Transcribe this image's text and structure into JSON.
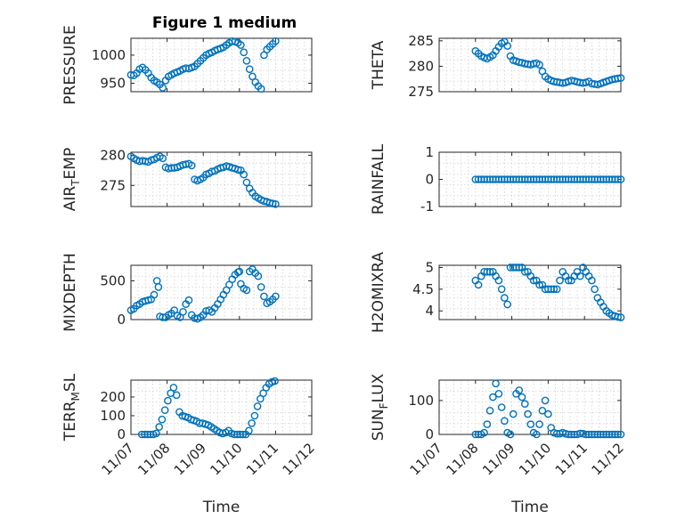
{
  "figure_title": "Figure 1 medium",
  "colors": {
    "marker": "#0072BD",
    "axis": "#262626",
    "grid": "#d0d0d0"
  },
  "chart_data": [
    {
      "type": "scatter",
      "ylabel": "PRESSURE",
      "ylim": [
        935,
        1030
      ],
      "yticks": [
        950,
        1000
      ],
      "xlim": [
        0,
        5
      ],
      "xticklabels": [
        "11/07",
        "11/08",
        "11/09",
        "11/10",
        "11/11",
        "11/12"
      ],
      "show_x_ticklabels": false,
      "xlabel": "",
      "grid": true,
      "x": [
        0.0,
        0.08,
        0.16,
        0.24,
        0.32,
        0.4,
        0.48,
        0.56,
        0.64,
        0.72,
        0.8,
        0.88,
        0.96,
        1.04,
        1.12,
        1.2,
        1.28,
        1.36,
        1.44,
        1.52,
        1.6,
        1.68,
        1.76,
        1.84,
        1.92,
        2.0,
        2.08,
        2.16,
        2.24,
        2.32,
        2.4,
        2.48,
        2.56,
        2.64,
        2.72,
        2.8,
        2.88,
        2.96,
        3.04,
        3.12,
        3.2,
        3.28,
        3.36,
        3.44,
        3.52,
        3.6,
        3.68,
        3.76,
        3.84,
        3.92,
        4.0
      ],
      "y": [
        965,
        964,
        968,
        975,
        978,
        974,
        968,
        960,
        955,
        952,
        948,
        942,
        955,
        962,
        965,
        968,
        970,
        972,
        975,
        977,
        976,
        978,
        980,
        985,
        990,
        995,
        1000,
        1003,
        1005,
        1008,
        1010,
        1012,
        1014,
        1018,
        1022,
        1025,
        1024,
        1022,
        1018,
        1005,
        990,
        975,
        962,
        952,
        945,
        940,
        1000,
        1010,
        1015,
        1020,
        1025
      ]
    },
    {
      "type": "scatter",
      "ylabel": "THETA",
      "ylim": [
        275,
        285.5
      ],
      "yticks": [
        275,
        280,
        285
      ],
      "xlim": [
        0,
        5
      ],
      "xticklabels": [
        "11/07",
        "11/08",
        "11/09",
        "11/10",
        "11/11",
        "11/12"
      ],
      "show_x_ticklabels": false,
      "xlabel": "",
      "grid": true,
      "x": [
        1.0,
        1.08,
        1.16,
        1.24,
        1.32,
        1.4,
        1.48,
        1.56,
        1.64,
        1.72,
        1.8,
        1.88,
        1.96,
        2.04,
        2.12,
        2.2,
        2.28,
        2.36,
        2.44,
        2.52,
        2.6,
        2.68,
        2.76,
        2.84,
        2.92,
        3.0,
        3.08,
        3.16,
        3.24,
        3.32,
        3.4,
        3.48,
        3.56,
        3.64,
        3.72,
        3.8,
        3.88,
        3.96,
        4.04,
        4.12,
        4.2,
        4.28,
        4.36,
        4.44,
        4.52,
        4.6,
        4.68,
        4.76,
        4.84,
        4.92,
        5.0
      ],
      "y": [
        283,
        282.5,
        282,
        281.7,
        281.5,
        281.8,
        282.2,
        283,
        283.8,
        284.5,
        284.8,
        284,
        282,
        281.2,
        281,
        280.8,
        280.7,
        280.5,
        280.4,
        280.3,
        280.5,
        280.6,
        280.3,
        279,
        278,
        277.5,
        277.2,
        277,
        276.9,
        276.8,
        276.7,
        276.8,
        277,
        277.2,
        277.1,
        276.9,
        276.8,
        276.7,
        276.8,
        277,
        276.6,
        276.5,
        276.4,
        276.6,
        276.8,
        277,
        277.2,
        277.4,
        277.5,
        277.6,
        277.7
      ]
    },
    {
      "type": "scatter",
      "ylabel": "AIR_TEMP",
      "ylabel_main": "AIR",
      "ylabel_sub": "T",
      "ylabel_rest": "EMP",
      "ylim": [
        271.5,
        280.5
      ],
      "yticks": [
        275,
        280
      ],
      "xlim": [
        0,
        5
      ],
      "xticklabels": [
        "11/07",
        "11/08",
        "11/09",
        "11/10",
        "11/11",
        "11/12"
      ],
      "show_x_ticklabels": false,
      "xlabel": "",
      "grid": true,
      "x": [
        0.0,
        0.08,
        0.16,
        0.24,
        0.32,
        0.4,
        0.48,
        0.56,
        0.64,
        0.72,
        0.8,
        0.88,
        0.96,
        1.04,
        1.12,
        1.2,
        1.28,
        1.36,
        1.44,
        1.52,
        1.6,
        1.68,
        1.76,
        1.84,
        1.92,
        2.0,
        2.08,
        2.16,
        2.24,
        2.32,
        2.4,
        2.48,
        2.56,
        2.64,
        2.72,
        2.8,
        2.88,
        2.96,
        3.04,
        3.12,
        3.2,
        3.28,
        3.36,
        3.44,
        3.52,
        3.6,
        3.68,
        3.76,
        3.84,
        3.92,
        4.0
      ],
      "y": [
        279.8,
        279.5,
        279.2,
        279,
        279.1,
        279,
        278.9,
        279.2,
        279.3,
        279.6,
        279.8,
        279.5,
        278,
        277.8,
        277.9,
        277.9,
        278,
        278.2,
        278.4,
        278.5,
        278.6,
        278.3,
        276,
        275.8,
        276,
        276.3,
        276.8,
        277,
        277.3,
        277.4,
        277.7,
        277.9,
        278,
        278.2,
        278.1,
        277.9,
        277.8,
        277.6,
        277.5,
        276.8,
        275.5,
        274.5,
        273.8,
        273.2,
        272.9,
        272.6,
        272.4,
        272.3,
        272.1,
        272,
        271.9
      ]
    },
    {
      "type": "scatter",
      "ylabel": "RAINFALL",
      "ylim": [
        -1,
        1
      ],
      "yticks": [
        -1,
        0,
        1
      ],
      "xlim": [
        0,
        5
      ],
      "xticklabels": [
        "11/07",
        "11/08",
        "11/09",
        "11/10",
        "11/11",
        "11/12"
      ],
      "show_x_ticklabels": false,
      "xlabel": "",
      "grid": true,
      "x": [
        1.0,
        1.08,
        1.16,
        1.24,
        1.32,
        1.4,
        1.48,
        1.56,
        1.64,
        1.72,
        1.8,
        1.88,
        1.96,
        2.04,
        2.12,
        2.2,
        2.28,
        2.36,
        2.44,
        2.52,
        2.6,
        2.68,
        2.76,
        2.84,
        2.92,
        3.0,
        3.08,
        3.16,
        3.24,
        3.32,
        3.4,
        3.48,
        3.56,
        3.64,
        3.72,
        3.8,
        3.88,
        3.96,
        4.04,
        4.12,
        4.2,
        4.28,
        4.36,
        4.44,
        4.52,
        4.6,
        4.68,
        4.76,
        4.84,
        4.92,
        5.0
      ],
      "y": [
        0,
        0,
        0,
        0,
        0,
        0,
        0,
        0,
        0,
        0,
        0,
        0,
        0,
        0,
        0,
        0,
        0,
        0,
        0,
        0,
        0,
        0,
        0,
        0,
        0,
        0,
        0,
        0,
        0,
        0,
        0,
        0,
        0,
        0,
        0,
        0,
        0,
        0,
        0,
        0,
        0,
        0,
        0,
        0,
        0,
        0,
        0,
        0,
        0,
        0,
        0
      ]
    },
    {
      "type": "scatter",
      "ylabel": "MIXDEPTH",
      "ylim": [
        0,
        700
      ],
      "yticks": [
        0,
        500
      ],
      "xlim": [
        0,
        5
      ],
      "xticklabels": [
        "11/07",
        "11/08",
        "11/09",
        "11/10",
        "11/11",
        "11/12"
      ],
      "show_x_ticklabels": false,
      "xlabel": "",
      "grid": true,
      "x": [
        0.0,
        0.08,
        0.16,
        0.24,
        0.32,
        0.4,
        0.48,
        0.56,
        0.64,
        0.72,
        0.76,
        0.8,
        0.88,
        0.96,
        1.04,
        1.12,
        1.2,
        1.28,
        1.36,
        1.44,
        1.52,
        1.6,
        1.68,
        1.76,
        1.84,
        1.92,
        2.0,
        2.08,
        2.16,
        2.24,
        2.32,
        2.4,
        2.48,
        2.56,
        2.64,
        2.72,
        2.8,
        2.88,
        2.96,
        3.0,
        3.04,
        3.12,
        3.2,
        3.28,
        3.36,
        3.44,
        3.52,
        3.6,
        3.68,
        3.76,
        3.84,
        3.92,
        4.0
      ],
      "y": [
        120,
        140,
        180,
        200,
        230,
        240,
        250,
        260,
        320,
        500,
        420,
        40,
        30,
        30,
        60,
        80,
        120,
        50,
        30,
        100,
        200,
        250,
        60,
        20,
        10,
        30,
        60,
        110,
        120,
        100,
        150,
        200,
        260,
        320,
        380,
        450,
        520,
        580,
        610,
        620,
        460,
        400,
        380,
        620,
        650,
        600,
        560,
        420,
        300,
        210,
        230,
        260,
        300
      ]
    },
    {
      "type": "scatter",
      "ylabel": "H2OMIXRA",
      "ylim": [
        3.8,
        5.05
      ],
      "yticks": [
        4,
        4.5,
        5
      ],
      "xlim": [
        0,
        5
      ],
      "xticklabels": [
        "11/07",
        "11/08",
        "11/09",
        "11/10",
        "11/11",
        "11/12"
      ],
      "show_x_ticklabels": false,
      "xlabel": "",
      "grid": true,
      "x": [
        1.0,
        1.08,
        1.16,
        1.24,
        1.32,
        1.4,
        1.48,
        1.56,
        1.64,
        1.72,
        1.8,
        1.88,
        1.96,
        2.04,
        2.12,
        2.2,
        2.28,
        2.36,
        2.44,
        2.52,
        2.6,
        2.68,
        2.76,
        2.84,
        2.92,
        3.0,
        3.08,
        3.16,
        3.24,
        3.32,
        3.4,
        3.48,
        3.56,
        3.64,
        3.72,
        3.8,
        3.88,
        3.96,
        4.04,
        4.12,
        4.2,
        4.28,
        4.36,
        4.44,
        4.52,
        4.6,
        4.68,
        4.76,
        4.84,
        4.92,
        5.0
      ],
      "y": [
        4.7,
        4.6,
        4.8,
        4.9,
        4.9,
        4.9,
        4.9,
        4.8,
        4.7,
        4.5,
        4.3,
        4.15,
        5.0,
        5.0,
        5.0,
        5.0,
        5.0,
        4.9,
        4.9,
        4.8,
        4.7,
        4.7,
        4.6,
        4.6,
        4.5,
        4.5,
        4.5,
        4.5,
        4.5,
        4.7,
        4.9,
        4.8,
        4.7,
        4.7,
        4.8,
        4.9,
        4.8,
        5.0,
        4.9,
        4.8,
        4.7,
        4.5,
        4.3,
        4.2,
        4.1,
        4.0,
        3.95,
        3.9,
        3.88,
        3.86,
        3.85
      ]
    },
    {
      "type": "scatter",
      "ylabel": "TERR_MSL",
      "ylabel_main": "TERR",
      "ylabel_sub": "M",
      "ylabel_rest": "SL",
      "ylim": [
        0,
        290
      ],
      "yticks": [
        0,
        100,
        200
      ],
      "xlim": [
        0,
        5
      ],
      "xticklabels": [
        "11/07",
        "11/08",
        "11/09",
        "11/10",
        "11/11",
        "11/12"
      ],
      "xlabel": "Time",
      "show_x_ticklabels": true,
      "grid": true,
      "x": [
        0.3,
        0.38,
        0.46,
        0.54,
        0.62,
        0.7,
        0.78,
        0.86,
        0.94,
        1.02,
        1.1,
        1.18,
        1.26,
        1.34,
        1.42,
        1.5,
        1.58,
        1.66,
        1.74,
        1.82,
        1.9,
        1.98,
        2.06,
        2.14,
        2.22,
        2.3,
        2.38,
        2.46,
        2.54,
        2.62,
        2.7,
        2.78,
        2.86,
        2.94,
        3.02,
        3.1,
        3.18,
        3.26,
        3.34,
        3.42,
        3.5,
        3.58,
        3.66,
        3.74,
        3.82,
        3.9,
        3.98
      ],
      "y": [
        0,
        0,
        0,
        0,
        0,
        5,
        40,
        80,
        130,
        180,
        220,
        250,
        210,
        120,
        100,
        95,
        90,
        80,
        75,
        70,
        60,
        60,
        55,
        50,
        40,
        30,
        20,
        10,
        5,
        10,
        20,
        5,
        0,
        0,
        0,
        0,
        0,
        20,
        60,
        100,
        150,
        190,
        220,
        250,
        270,
        280,
        285
      ]
    },
    {
      "type": "scatter",
      "ylabel": "SUN_FLUX",
      "ylabel_main": "SUN",
      "ylabel_sub": "F",
      "ylabel_rest": "LUX",
      "ylim": [
        0,
        160
      ],
      "yticks": [
        0,
        100
      ],
      "xlim": [
        0,
        5
      ],
      "xticklabels": [
        "11/07",
        "11/08",
        "11/09",
        "11/10",
        "11/11",
        "11/12"
      ],
      "xlabel": "Time",
      "show_x_ticklabels": true,
      "grid": true,
      "x": [
        1.0,
        1.08,
        1.16,
        1.24,
        1.32,
        1.4,
        1.48,
        1.56,
        1.64,
        1.72,
        1.8,
        1.88,
        1.96,
        2.04,
        2.12,
        2.2,
        2.28,
        2.36,
        2.44,
        2.52,
        2.6,
        2.68,
        2.76,
        2.84,
        2.92,
        3.0,
        3.08,
        3.16,
        3.24,
        3.32,
        3.4,
        3.48,
        3.56,
        3.64,
        3.72,
        3.8,
        3.88,
        3.96,
        4.04,
        4.12,
        4.2,
        4.28,
        4.36,
        4.44,
        4.52,
        4.6,
        4.68,
        4.76,
        4.84,
        4.92,
        5.0
      ],
      "y": [
        0,
        0,
        0,
        5,
        30,
        70,
        110,
        150,
        120,
        80,
        40,
        5,
        0,
        60,
        120,
        130,
        110,
        90,
        60,
        30,
        5,
        0,
        30,
        70,
        100,
        60,
        20,
        5,
        2,
        2,
        5,
        2,
        0,
        0,
        0,
        0,
        3,
        2,
        0,
        0,
        0,
        0,
        0,
        0,
        0,
        0,
        0,
        0,
        0,
        0,
        0
      ]
    }
  ]
}
